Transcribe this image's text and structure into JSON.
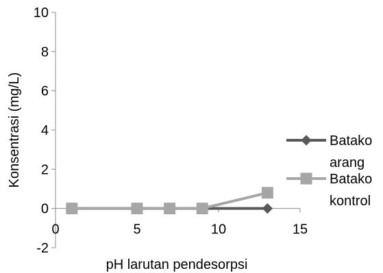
{
  "chart_data": {
    "type": "line",
    "xlabel": "pH larutan pendesorpsi",
    "ylabel": "Konsentrasi (mg/L)",
    "xlim": [
      0,
      15
    ],
    "ylim": [
      -2,
      10
    ],
    "x_ticks": [
      0,
      5,
      10,
      15
    ],
    "y_ticks": [
      -2,
      0,
      2,
      4,
      6,
      8,
      10
    ],
    "grid": false,
    "legend_position": "right",
    "series": [
      {
        "name": "Batako arang",
        "legend_lines": [
          "Batako",
          "arang"
        ],
        "marker": "diamond",
        "color": "#595959",
        "x": [
          1,
          5,
          7,
          9,
          13
        ],
        "y": [
          0,
          0,
          0,
          0,
          0
        ]
      },
      {
        "name": "Batako kontrol",
        "legend_lines": [
          "Batako",
          "kontrol"
        ],
        "marker": "square",
        "color": "#a6a6a6",
        "x": [
          1,
          5,
          7,
          9,
          13
        ],
        "y": [
          0,
          0,
          0,
          0,
          0.8
        ]
      }
    ]
  }
}
